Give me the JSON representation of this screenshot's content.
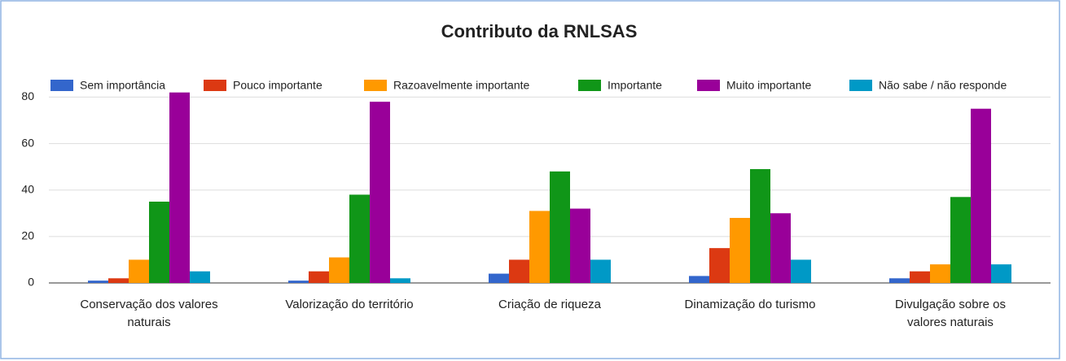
{
  "chart_data": {
    "type": "bar",
    "title": "Contributo da RNLSAS",
    "categories": [
      "Conservação dos valores naturais",
      "Valorização do território",
      "Criação de riqueza",
      "Dinamização do turismo",
      "Divulgação sobre os valores naturais"
    ],
    "series": [
      {
        "name": "Sem importância",
        "color": "#3366cc",
        "values": [
          1,
          1,
          4,
          3,
          2
        ]
      },
      {
        "name": "Pouco importante",
        "color": "#dc3912",
        "values": [
          2,
          5,
          10,
          15,
          5
        ]
      },
      {
        "name": "Razoavelmente importante",
        "color": "#ff9900",
        "values": [
          10,
          11,
          31,
          28,
          8
        ]
      },
      {
        "name": "Importante",
        "color": "#109618",
        "values": [
          35,
          38,
          48,
          49,
          37
        ]
      },
      {
        "name": "Muito importante",
        "color": "#990099",
        "values": [
          82,
          78,
          32,
          30,
          75
        ]
      },
      {
        "name": "Não sabe / não responde",
        "color": "#0099c6",
        "values": [
          5,
          2,
          10,
          10,
          8
        ]
      }
    ],
    "ylim": [
      0,
      84
    ],
    "yticks": [
      0,
      20,
      40,
      60,
      80
    ],
    "grid": true,
    "legend": "top"
  }
}
